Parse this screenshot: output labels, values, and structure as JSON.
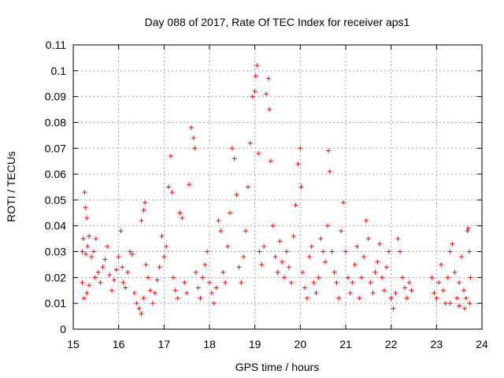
{
  "chart_data": {
    "type": "scatter",
    "title": "Day 088 of 2017, Rate Of TEC Index for receiver aps1",
    "xlabel": "GPS time / hours",
    "ylabel": "ROTI / TECUs",
    "xlim": [
      15,
      24
    ],
    "ylim": [
      0,
      0.11
    ],
    "xticks": [
      "15",
      "16",
      "17",
      "18",
      "19",
      "20",
      "21",
      "22",
      "23",
      "24"
    ],
    "yticks": [
      "0",
      "0.01",
      "0.02",
      "0.03",
      "0.04",
      "0.05",
      "0.06",
      "0.07",
      "0.08",
      "0.09",
      "0.1",
      "0.11"
    ],
    "grid": true,
    "marker": "+",
    "color": "#ff0000",
    "series": [
      {
        "points": [
          [
            15.2,
            0.03
          ],
          [
            15.22,
            0.035
          ],
          [
            15.25,
            0.053
          ],
          [
            15.27,
            0.047
          ],
          [
            15.3,
            0.043
          ],
          [
            15.28,
            0.029
          ],
          [
            15.32,
            0.032
          ],
          [
            15.35,
            0.036
          ],
          [
            15.2,
            0.018
          ],
          [
            15.24,
            0.012
          ],
          [
            15.3,
            0.014
          ],
          [
            15.35,
            0.017
          ],
          [
            15.4,
            0.028
          ],
          [
            15.45,
            0.03
          ],
          [
            15.5,
            0.035
          ],
          [
            15.48,
            0.02
          ],
          [
            15.55,
            0.022
          ],
          [
            15.6,
            0.018
          ],
          [
            15.65,
            0.024
          ],
          [
            15.7,
            0.027
          ],
          [
            15.75,
            0.032
          ],
          [
            15.8,
            0.021
          ],
          [
            15.85,
            0.015
          ],
          [
            15.9,
            0.019
          ],
          [
            15.95,
            0.023
          ],
          [
            16.0,
            0.028
          ],
          [
            16.05,
            0.038
          ],
          [
            16.08,
            0.024
          ],
          [
            16.1,
            0.018
          ],
          [
            16.15,
            0.016
          ],
          [
            16.2,
            0.022
          ],
          [
            16.25,
            0.03
          ],
          [
            16.3,
            0.029
          ],
          [
            16.35,
            0.014
          ],
          [
            16.4,
            0.01
          ],
          [
            16.45,
            0.008
          ],
          [
            16.5,
            0.006
          ],
          [
            16.55,
            0.012
          ],
          [
            16.5,
            0.042
          ],
          [
            16.55,
            0.046
          ],
          [
            16.58,
            0.049
          ],
          [
            16.6,
            0.025
          ],
          [
            16.65,
            0.02
          ],
          [
            16.7,
            0.015
          ],
          [
            16.75,
            0.01
          ],
          [
            16.8,
            0.014
          ],
          [
            16.85,
            0.019
          ],
          [
            16.9,
            0.024
          ],
          [
            16.95,
            0.036
          ],
          [
            17.0,
            0.028
          ],
          [
            17.05,
            0.032
          ],
          [
            17.1,
            0.055
          ],
          [
            17.15,
            0.067
          ],
          [
            17.18,
            0.053
          ],
          [
            17.2,
            0.02
          ],
          [
            17.25,
            0.015
          ],
          [
            17.3,
            0.012
          ],
          [
            17.35,
            0.045
          ],
          [
            17.4,
            0.043
          ],
          [
            17.45,
            0.018
          ],
          [
            17.5,
            0.014
          ],
          [
            17.55,
            0.056
          ],
          [
            17.6,
            0.078
          ],
          [
            17.65,
            0.074
          ],
          [
            17.68,
            0.07
          ],
          [
            17.7,
            0.022
          ],
          [
            17.75,
            0.016
          ],
          [
            17.8,
            0.012
          ],
          [
            17.85,
            0.02
          ],
          [
            17.9,
            0.025
          ],
          [
            17.95,
            0.03
          ],
          [
            18.0,
            0.018
          ],
          [
            18.05,
            0.014
          ],
          [
            18.1,
            0.01
          ],
          [
            18.15,
            0.016
          ],
          [
            18.2,
            0.042
          ],
          [
            18.25,
            0.038
          ],
          [
            18.3,
            0.022
          ],
          [
            18.35,
            0.018
          ],
          [
            18.4,
            0.032
          ],
          [
            18.45,
            0.045
          ],
          [
            18.5,
            0.07
          ],
          [
            18.55,
            0.066
          ],
          [
            18.6,
            0.052
          ],
          [
            18.65,
            0.024
          ],
          [
            18.7,
            0.018
          ],
          [
            18.75,
            0.028
          ],
          [
            18.8,
            0.038
          ],
          [
            18.85,
            0.055
          ],
          [
            18.9,
            0.072
          ],
          [
            18.95,
            0.09
          ],
          [
            19.0,
            0.092
          ],
          [
            19.02,
            0.098
          ],
          [
            19.05,
            0.102
          ],
          [
            19.08,
            0.068
          ],
          [
            19.1,
            0.03
          ],
          [
            19.15,
            0.025
          ],
          [
            19.2,
            0.032
          ],
          [
            19.25,
            0.091
          ],
          [
            19.3,
            0.097
          ],
          [
            19.32,
            0.085
          ],
          [
            19.35,
            0.065
          ],
          [
            19.4,
            0.04
          ],
          [
            19.45,
            0.028
          ],
          [
            19.5,
            0.022
          ],
          [
            19.55,
            0.034
          ],
          [
            19.6,
            0.026
          ],
          [
            19.65,
            0.02
          ],
          [
            19.7,
            0.03
          ],
          [
            19.75,
            0.024
          ],
          [
            19.8,
            0.018
          ],
          [
            19.85,
            0.036
          ],
          [
            19.9,
            0.048
          ],
          [
            19.95,
            0.064
          ],
          [
            20.0,
            0.07
          ],
          [
            20.02,
            0.055
          ],
          [
            20.05,
            0.022
          ],
          [
            20.1,
            0.016
          ],
          [
            20.15,
            0.012
          ],
          [
            20.2,
            0.028
          ],
          [
            20.25,
            0.032
          ],
          [
            20.3,
            0.018
          ],
          [
            20.35,
            0.014
          ],
          [
            20.4,
            0.02
          ],
          [
            20.45,
            0.035
          ],
          [
            20.5,
            0.03
          ],
          [
            20.55,
            0.026
          ],
          [
            20.6,
            0.04
          ],
          [
            20.62,
            0.069
          ],
          [
            20.65,
            0.061
          ],
          [
            20.7,
            0.03
          ],
          [
            20.75,
            0.022
          ],
          [
            20.8,
            0.018
          ],
          [
            20.85,
            0.012
          ],
          [
            20.9,
            0.038
          ],
          [
            20.95,
            0.049
          ],
          [
            21.0,
            0.03
          ],
          [
            21.05,
            0.02
          ],
          [
            21.1,
            0.014
          ],
          [
            21.15,
            0.018
          ],
          [
            21.2,
            0.025
          ],
          [
            21.25,
            0.032
          ],
          [
            21.3,
            0.012
          ],
          [
            21.35,
            0.02
          ],
          [
            21.4,
            0.028
          ],
          [
            21.45,
            0.042
          ],
          [
            21.5,
            0.035
          ],
          [
            21.55,
            0.018
          ],
          [
            21.6,
            0.014
          ],
          [
            21.65,
            0.022
          ],
          [
            21.7,
            0.026
          ],
          [
            21.75,
            0.033
          ],
          [
            21.8,
            0.02
          ],
          [
            21.85,
            0.015
          ],
          [
            21.9,
            0.024
          ],
          [
            21.95,
            0.03
          ],
          [
            22.0,
            0.012
          ],
          [
            22.05,
            0.008
          ],
          [
            22.1,
            0.014
          ],
          [
            22.15,
            0.035
          ],
          [
            22.2,
            0.03
          ],
          [
            22.25,
            0.02
          ],
          [
            22.3,
            0.016
          ],
          [
            22.35,
            0.012
          ],
          [
            22.4,
            0.018
          ],
          [
            22.45,
            0.015
          ],
          [
            22.9,
            0.02
          ],
          [
            22.95,
            0.014
          ],
          [
            23.0,
            0.012
          ],
          [
            23.05,
            0.018
          ],
          [
            23.1,
            0.025
          ],
          [
            23.15,
            0.015
          ],
          [
            23.2,
            0.01
          ],
          [
            23.25,
            0.02
          ],
          [
            23.3,
            0.03
          ],
          [
            23.35,
            0.033
          ],
          [
            23.4,
            0.022
          ],
          [
            23.45,
            0.012
          ],
          [
            23.5,
            0.018
          ],
          [
            23.55,
            0.028
          ],
          [
            23.6,
            0.015
          ],
          [
            23.65,
            0.012
          ],
          [
            23.68,
            0.038
          ],
          [
            23.7,
            0.039
          ],
          [
            23.72,
            0.03
          ],
          [
            23.75,
            0.02
          ],
          [
            23.73,
            0.01
          ],
          [
            23.62,
            0.008
          ],
          [
            23.5,
            0.009
          ],
          [
            23.3,
            0.01
          ]
        ]
      }
    ]
  }
}
